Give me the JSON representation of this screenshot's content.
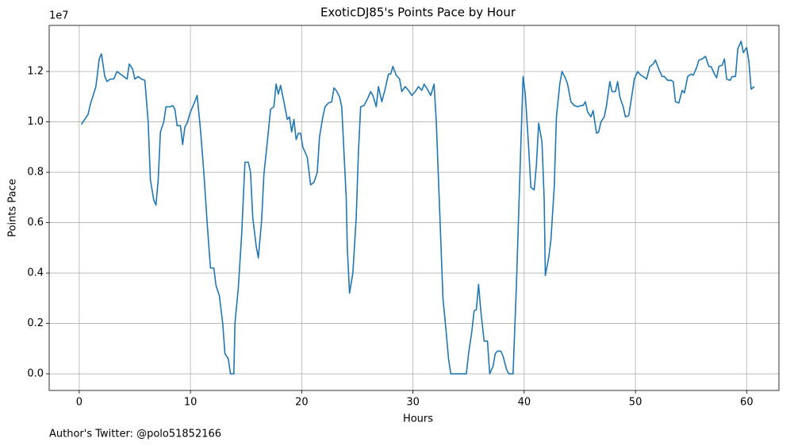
{
  "chart_data": {
    "type": "line",
    "title": "ExoticDJ85's Points Pace by Hour",
    "xlabel": "Hours",
    "ylabel": "Points Pace",
    "y_offset_label": "1e7",
    "annotation": "Author's Twitter: @polo51852166",
    "grid": true,
    "xlim": [
      -2.7,
      62.9
    ],
    "ylim": [
      -0.066,
      1.383
    ],
    "xticks": [
      0,
      10,
      20,
      30,
      40,
      50,
      60
    ],
    "yticks": [
      {
        "value": 0,
        "label": "0.0"
      },
      0.2,
      0.4,
      0.6,
      0.8,
      {
        "value": 1,
        "label": "1.0"
      },
      1.2
    ],
    "x": [
      0.2,
      0.8,
      1.0,
      1.5,
      1.8,
      2.0,
      2.3,
      2.5,
      2.8,
      3.1,
      3.4,
      4.0,
      4.3,
      4.5,
      4.8,
      5.0,
      5.3,
      5.6,
      5.9,
      6.2,
      6.4,
      6.7,
      6.9,
      7.1,
      7.3,
      7.6,
      7.8,
      8.2,
      8.4,
      8.6,
      8.8,
      9.1,
      9.3,
      9.5,
      9.7,
      10.0,
      10.3,
      10.6,
      10.9,
      11.2,
      11.5,
      11.8,
      12.1,
      12.3,
      12.6,
      12.9,
      13.1,
      13.4,
      13.6,
      13.9,
      14.0,
      14.3,
      14.6,
      14.9,
      15.2,
      15.4,
      15.6,
      15.9,
      16.1,
      16.4,
      16.6,
      17.0,
      17.2,
      17.5,
      17.7,
      17.9,
      18.1,
      18.4,
      18.7,
      18.9,
      19.1,
      19.3,
      19.5,
      19.7,
      19.9,
      20.1,
      20.5,
      20.8,
      21.1,
      21.4,
      21.6,
      21.9,
      22.1,
      22.4,
      22.7,
      22.9,
      23.1,
      23.4,
      23.6,
      24.0,
      24.1,
      24.3,
      24.6,
      24.9,
      25.1,
      25.3,
      25.6,
      25.9,
      26.2,
      26.4,
      26.7,
      26.9,
      27.2,
      27.5,
      27.8,
      28.0,
      28.2,
      28.5,
      28.8,
      29.0,
      29.3,
      29.6,
      29.9,
      30.2,
      30.5,
      30.8,
      31.0,
      31.3,
      31.6,
      31.9,
      32.1,
      32.4,
      32.7,
      33.0,
      33.2,
      33.4,
      34.8,
      35.0,
      35.3,
      35.5,
      35.7,
      35.9,
      36.1,
      36.4,
      36.7,
      36.9,
      37.2,
      37.4,
      37.6,
      37.9,
      38.1,
      38.4,
      38.6,
      39.0,
      39.3,
      39.6,
      39.9,
      40.1,
      40.4,
      40.6,
      40.9,
      41.1,
      41.3,
      41.6,
      41.8,
      41.9,
      42.2,
      42.4,
      42.7,
      42.9,
      43.2,
      43.4,
      43.7,
      43.9,
      44.2,
      44.5,
      44.8,
      45.1,
      45.3,
      45.5,
      45.7,
      46.0,
      46.2,
      46.5,
      46.7,
      46.9,
      47.2,
      47.4,
      47.7,
      47.9,
      48.2,
      48.4,
      48.6,
      48.9,
      49.1,
      49.4,
      49.7,
      49.9,
      50.2,
      50.5,
      50.7,
      51.0,
      51.3,
      51.6,
      51.8,
      52.1,
      52.4,
      52.6,
      52.9,
      53.2,
      53.4,
      53.6,
      53.9,
      54.2,
      54.4,
      54.7,
      55.0,
      55.2,
      55.5,
      55.7,
      56.0,
      56.3,
      56.6,
      56.8,
      57.1,
      57.3,
      57.5,
      57.8,
      58.0,
      58.2,
      58.5,
      58.7,
      59.0,
      59.2,
      59.5,
      59.7,
      60.0,
      60.2,
      60.4,
      60.7
    ],
    "series": [
      {
        "color": "#1f77b4",
        "values": [
          0.99,
          1.03,
          1.07,
          1.14,
          1.25,
          1.27,
          1.18,
          1.16,
          1.17,
          1.17,
          1.2,
          1.18,
          1.17,
          1.23,
          1.21,
          1.17,
          1.18,
          1.17,
          1.165,
          1.0,
          0.77,
          0.69,
          0.67,
          0.77,
          0.96,
          1.0,
          1.06,
          1.06,
          1.065,
          1.05,
          0.985,
          0.985,
          0.91,
          0.98,
          0.995,
          1.04,
          1.07,
          1.105,
          0.97,
          0.8,
          0.6,
          0.42,
          0.42,
          0.35,
          0.31,
          0.2,
          0.08,
          0.06,
          0,
          0,
          0.2,
          0.34,
          0.55,
          0.84,
          0.84,
          0.8,
          0.62,
          0.51,
          0.46,
          0.61,
          0.79,
          0.96,
          1.05,
          1.06,
          1.15,
          1.11,
          1.145,
          1.08,
          1.01,
          1.02,
          0.96,
          1.01,
          0.93,
          0.955,
          0.955,
          0.9,
          0.86,
          0.75,
          0.76,
          0.8,
          0.94,
          1.02,
          1.06,
          1.075,
          1.08,
          1.135,
          1.125,
          1.1,
          1.06,
          0.7,
          0.5,
          0.32,
          0.4,
          0.62,
          0.88,
          1.06,
          1.065,
          1.09,
          1.12,
          1.105,
          1.06,
          1.14,
          1.08,
          1.13,
          1.19,
          1.19,
          1.22,
          1.185,
          1.17,
          1.12,
          1.14,
          1.125,
          1.105,
          1.12,
          1.14,
          1.125,
          1.15,
          1.13,
          1.105,
          1.15,
          1.0,
          0.65,
          0.3,
          0.16,
          0.06,
          0,
          0,
          0.08,
          0.17,
          0.25,
          0.255,
          0.355,
          0.25,
          0.13,
          0.13,
          0.0,
          0.03,
          0.08,
          0.09,
          0.09,
          0.07,
          0.02,
          0,
          0,
          0.35,
          0.77,
          1.18,
          1.11,
          0.9,
          0.74,
          0.73,
          0.83,
          0.995,
          0.92,
          0.69,
          0.39,
          0.46,
          0.53,
          0.74,
          1.02,
          1.15,
          1.2,
          1.175,
          1.15,
          1.08,
          1.065,
          1.06,
          1.065,
          1.065,
          1.08,
          1.04,
          1.02,
          1.045,
          0.955,
          0.96,
          1.0,
          1.02,
          1.065,
          1.16,
          1.12,
          1.12,
          1.16,
          1.1,
          1.06,
          1.02,
          1.025,
          1.11,
          1.17,
          1.2,
          1.185,
          1.18,
          1.17,
          1.22,
          1.23,
          1.245,
          1.21,
          1.18,
          1.18,
          1.165,
          1.165,
          1.16,
          1.08,
          1.075,
          1.125,
          1.115,
          1.18,
          1.19,
          1.185,
          1.215,
          1.245,
          1.25,
          1.26,
          1.22,
          1.22,
          1.19,
          1.175,
          1.22,
          1.225,
          1.25,
          1.17,
          1.165,
          1.18,
          1.18,
          1.29,
          1.32,
          1.275,
          1.295,
          1.24,
          1.13,
          1.14
        ]
      }
    ]
  }
}
